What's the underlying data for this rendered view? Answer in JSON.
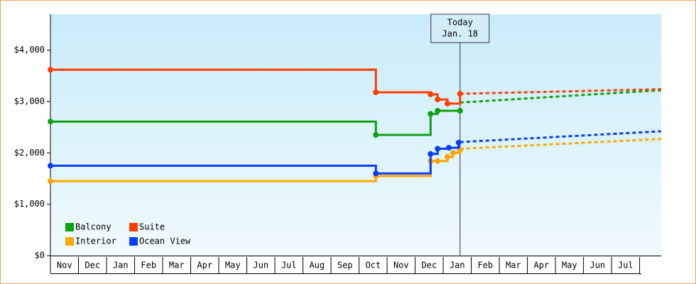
{
  "chart_data": {
    "type": "line",
    "categories": [
      "Nov",
      "Dec",
      "Jan",
      "Feb",
      "Mar",
      "Apr",
      "May",
      "Jun",
      "Jul",
      "Aug",
      "Sep",
      "Oct",
      "Nov",
      "Dec",
      "Jan",
      "Feb",
      "Mar",
      "Apr",
      "May",
      "Jun",
      "Jul"
    ],
    "xlim": [
      0,
      21.77
    ],
    "ylim": [
      0,
      4700
    ],
    "yticks": [
      {
        "value": 0,
        "label": "$0"
      },
      {
        "value": 1000,
        "label": "$1,000"
      },
      {
        "value": 2000,
        "label": "$2,000"
      },
      {
        "value": 3000,
        "label": "$3,000"
      },
      {
        "value": 4000,
        "label": "$4,000"
      }
    ],
    "step": true,
    "legend": "lower left",
    "annotation": {
      "x": 14.6,
      "lines": [
        "Today",
        "Jan. 18"
      ]
    },
    "series": [
      {
        "name": "Balcony",
        "color": "#10a010",
        "x": [
          0,
          11.6,
          13.55,
          13.8,
          14.6
        ],
        "values": [
          2610,
          2350,
          2760,
          2820,
          2820
        ],
        "forecast_x": [
          14.6,
          21.77
        ],
        "forecast_values": [
          2980,
          3220
        ]
      },
      {
        "name": "Suite",
        "color": "#ff3c00",
        "x": [
          0,
          11.6,
          13.55,
          13.8,
          14.15,
          14.6
        ],
        "values": [
          3620,
          3180,
          3140,
          3040,
          2960,
          3150
        ],
        "forecast_x": [
          14.6,
          21.77
        ],
        "forecast_values": [
          3150,
          3240
        ]
      },
      {
        "name": "Interior",
        "color": "#ffa500",
        "x": [
          0,
          11.6,
          13.55,
          13.8,
          14.15,
          14.35,
          14.6
        ],
        "values": [
          1450,
          1550,
          1840,
          1840,
          1920,
          2000,
          2050
        ],
        "forecast_x": [
          14.6,
          21.77
        ],
        "forecast_values": [
          2080,
          2270
        ]
      },
      {
        "name": "Ocean View",
        "color": "#0a3cff",
        "x": [
          0,
          11.6,
          13.55,
          13.8,
          14.2,
          14.55
        ],
        "values": [
          1750,
          1600,
          1980,
          2080,
          2100,
          2200
        ],
        "forecast_x": [
          14.6,
          21.77
        ],
        "forecast_values": [
          2210,
          2420
        ]
      }
    ]
  }
}
